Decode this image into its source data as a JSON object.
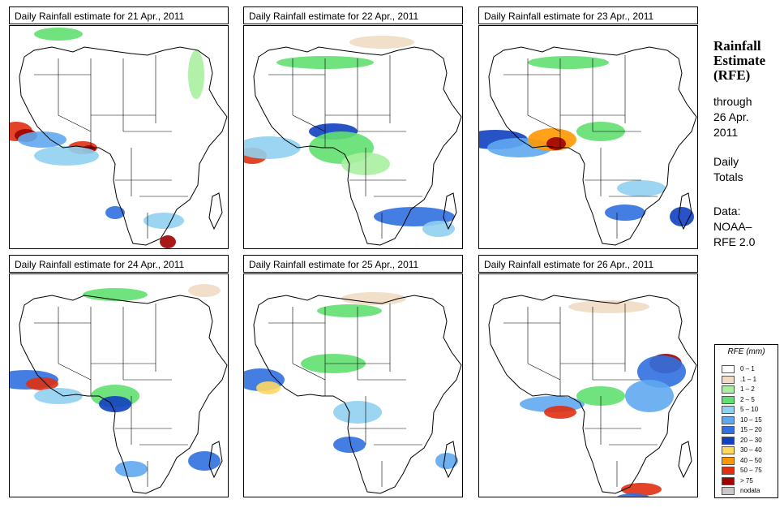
{
  "panels": [
    {
      "title": "Daily Rainfall estimate for  21 Apr., 2011"
    },
    {
      "title": "Daily Rainfall estimate for  22 Apr., 2011"
    },
    {
      "title": "Daily Rainfall estimate for  23 Apr., 2011"
    },
    {
      "title": "Daily Rainfall estimate for  24 Apr., 2011"
    },
    {
      "title": "Daily Rainfall estimate for  25 Apr., 2011"
    },
    {
      "title": "Daily Rainfall estimate for  26 Apr., 2011"
    }
  ],
  "side": {
    "title_line1": "Rainfall",
    "title_line2": "Estimate",
    "title_line3": "(RFE)",
    "through_label": "through",
    "date_line1": "26 Apr.",
    "date_line2": "2011",
    "totals_line1": "Daily",
    "totals_line2": "Totals",
    "data_line1": "Data:",
    "data_line2": "NOAA–",
    "data_line3": "RFE 2.0"
  },
  "legend": {
    "title": "RFE (mm)",
    "items": [
      {
        "label": "0 – 1",
        "color": "#ffffff"
      },
      {
        "label": ".1 – 1",
        "color": "#f0dcc4"
      },
      {
        "label": "1 – 2",
        "color": "#a8f0a0"
      },
      {
        "label": "2 – 5",
        "color": "#60e070"
      },
      {
        "label": "5 – 10",
        "color": "#90d0f0"
      },
      {
        "label": "10 – 15",
        "color": "#60a8f0"
      },
      {
        "label": "15 – 20",
        "color": "#3070e0"
      },
      {
        "label": "20 – 30",
        "color": "#1040c0"
      },
      {
        "label": "30 – 40",
        "color": "#ffd860"
      },
      {
        "label": "40 – 50",
        "color": "#ff9800"
      },
      {
        "label": "50 – 75",
        "color": "#e03010"
      },
      {
        "label": "> 75",
        "color": "#a00000"
      },
      {
        "label": "nodata",
        "color": "#c8c8c8"
      }
    ]
  }
}
